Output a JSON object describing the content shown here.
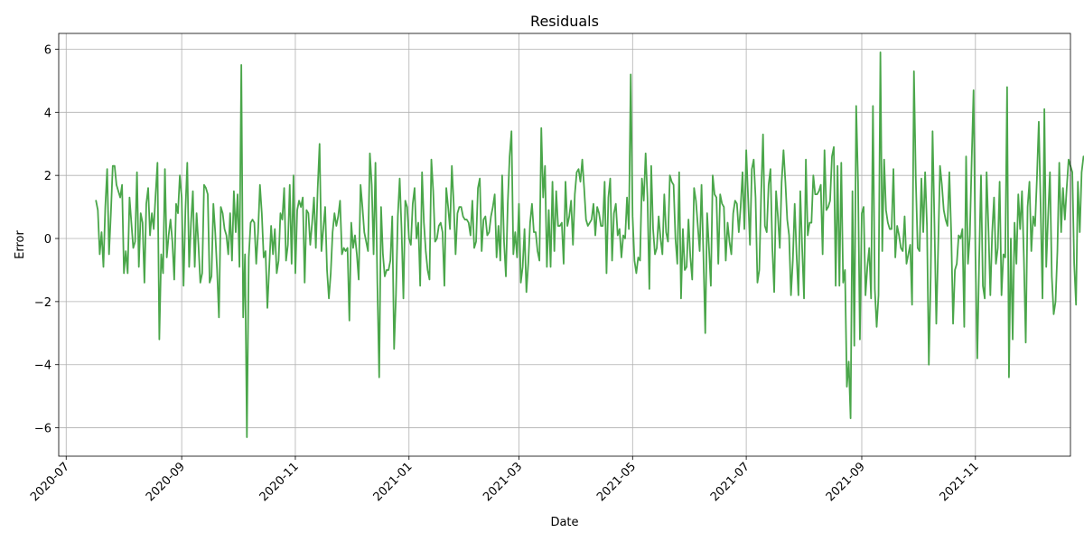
{
  "chart_data": {
    "type": "line",
    "title": "Residuals",
    "xlabel": "Date",
    "ylabel": "Error",
    "grid": true,
    "line_color": "#4aa64a",
    "x_range": [
      "2020-06-27",
      "2021-12-22"
    ],
    "ylim": [
      -6.9,
      6.5
    ],
    "y_ticks": [
      -6,
      -4,
      -2,
      0,
      2,
      4,
      6
    ],
    "x_ticks": [
      {
        "date": "2020-07-01",
        "label": "2020-07"
      },
      {
        "date": "2020-09-01",
        "label": "2020-09"
      },
      {
        "date": "2020-11-01",
        "label": "2020-11"
      },
      {
        "date": "2021-01-01",
        "label": "2021-01"
      },
      {
        "date": "2021-03-01",
        "label": "2021-03"
      },
      {
        "date": "2021-05-01",
        "label": "2021-05"
      },
      {
        "date": "2021-07-01",
        "label": "2021-07"
      },
      {
        "date": "2021-09-01",
        "label": "2021-09"
      },
      {
        "date": "2021-11-01",
        "label": "2021-11"
      }
    ],
    "series": [
      {
        "start_date": "2020-07-17",
        "values": [
          1.2,
          0.9,
          -0.5,
          0.2,
          -0.9,
          1.0,
          2.2,
          -0.5,
          0.8,
          2.3,
          2.3,
          1.7,
          1.5,
          1.3,
          1.7,
          -1.1,
          -0.4,
          -1.1,
          1.3,
          0.5,
          -0.3,
          -0.1,
          2.1,
          -0.9,
          0.8,
          0.5,
          -1.4,
          1.1,
          1.6,
          0.1,
          0.8,
          0.3,
          1.4,
          2.4,
          -3.2,
          -0.5,
          -1.1,
          2.2,
          -0.6,
          0.1,
          0.6,
          -0.1,
          -1.3,
          1.1,
          0.8,
          2.0,
          1.3,
          -1.5,
          0.9,
          2.4,
          -0.9,
          0.5,
          1.5,
          -0.9,
          0.8,
          -0.2,
          -1.4,
          -1.1,
          1.7,
          1.6,
          1.4,
          -1.4,
          -1.2,
          1.1,
          0.2,
          -1.0,
          -2.5,
          1.0,
          0.8,
          0.3,
          0.1,
          -0.5,
          0.8,
          -0.7,
          1.5,
          0.2,
          1.4,
          -0.9,
          5.5,
          -2.5,
          -0.5,
          -6.3,
          -0.6,
          0.5,
          0.6,
          0.5,
          -0.8,
          0.2,
          1.7,
          0.8,
          -0.6,
          -0.4,
          -2.2,
          -0.9,
          0.4,
          -0.5,
          0.3,
          -1.1,
          -0.7,
          0.8,
          0.6,
          1.6,
          -0.7,
          -0.2,
          1.7,
          -0.8,
          2.0,
          -1.1,
          0.9,
          1.2,
          1.0,
          1.3,
          -1.4,
          0.9,
          0.8,
          -0.2,
          0.5,
          1.3,
          -0.3,
          1.6,
          3.0,
          -0.4,
          0.3,
          1.0,
          -1.0,
          -1.9,
          -1.1,
          0.2,
          0.8,
          0.4,
          0.7,
          1.2,
          -0.5,
          -0.3,
          -0.4,
          -0.3,
          -2.6,
          0.5,
          -0.3,
          0.1,
          -0.5,
          -1.3,
          1.7,
          1.0,
          0.2,
          -0.1,
          -0.4,
          2.7,
          1.7,
          -0.5,
          2.4,
          -1.4,
          -4.4,
          1.0,
          -0.5,
          -1.2,
          -1.0,
          -1.0,
          -0.7,
          0.7,
          -3.5,
          -1.8,
          0.7,
          1.9,
          0.3,
          -1.9,
          1.2,
          1.0,
          0.0,
          -0.2,
          1.1,
          1.6,
          0.0,
          0.5,
          -1.5,
          2.1,
          0.5,
          -0.4,
          -1.0,
          -1.3,
          2.5,
          1.5,
          -0.1,
          -0.0,
          0.4,
          0.5,
          0.2,
          -1.5,
          1.6,
          1.0,
          0.3,
          2.3,
          1.1,
          -0.5,
          0.8,
          1.0,
          1.0,
          0.7,
          0.6,
          0.6,
          0.5,
          0.1,
          1.2,
          -0.3,
          -0.1,
          1.6,
          1.9,
          -0.4,
          0.6,
          0.7,
          0.1,
          0.2,
          0.7,
          1.0,
          1.4,
          -0.6,
          0.4,
          -0.7,
          2.0,
          -0.1,
          -1.2,
          1.1,
          2.6,
          3.4,
          -0.5,
          0.2,
          -0.6,
          1.1,
          -1.4,
          -0.9,
          0.3,
          -1.7,
          -0.8,
          0.5,
          1.1,
          0.2,
          0.2,
          -0.4,
          -0.7,
          3.5,
          1.3,
          2.3,
          -0.9,
          0.9,
          -0.9,
          1.8,
          -0.4,
          1.5,
          0.4,
          0.4,
          0.5,
          -0.8,
          1.8,
          0.4,
          0.7,
          1.2,
          -0.2,
          1.4,
          2.1,
          2.2,
          1.8,
          2.5,
          1.6,
          0.6,
          0.4,
          0.5,
          0.6,
          1.1,
          0.1,
          1.0,
          0.8,
          0.4,
          0.4,
          1.8,
          -1.1,
          1.3,
          1.9,
          -0.7,
          0.8,
          1.1,
          0.1,
          0.3,
          -0.6,
          0.1,
          0.0,
          1.3,
          0.3,
          5.2,
          0.7,
          -0.7,
          -1.1,
          -0.6,
          -0.7,
          1.9,
          1.2,
          2.7,
          1.3,
          -1.6,
          2.3,
          0.3,
          -0.5,
          -0.3,
          0.7,
          -0.0,
          -0.5,
          1.4,
          0.2,
          -0.1,
          2.0,
          1.8,
          1.7,
          0.0,
          -0.8,
          2.1,
          -1.9,
          0.3,
          -1.0,
          -0.9,
          0.6,
          -0.6,
          -1.3,
          1.6,
          1.2,
          0.4,
          -0.4,
          1.7,
          -0.5,
          -3.0,
          0.8,
          -0.3,
          -1.5,
          2.0,
          1.4,
          1.3,
          -0.8,
          1.4,
          1.1,
          1.0,
          -0.7,
          0.5,
          -0.1,
          -0.5,
          0.8,
          1.2,
          1.1,
          0.2,
          1.0,
          2.1,
          0.3,
          2.8,
          1.3,
          -0.2,
          2.2,
          2.5,
          1.3,
          -1.4,
          -1.0,
          1.4,
          3.3,
          0.4,
          0.2,
          1.7,
          2.2,
          -0.3,
          -1.7,
          1.5,
          0.7,
          -0.3,
          1.8,
          2.8,
          1.8,
          0.6,
          0.1,
          -1.8,
          -0.7,
          1.1,
          -0.5,
          -1.8,
          1.5,
          -0.3,
          -1.9,
          2.5,
          0.1,
          0.5,
          0.5,
          2.0,
          1.4,
          1.4,
          1.5,
          1.7,
          -0.5,
          2.8,
          0.9,
          1.0,
          1.2,
          2.6,
          2.9,
          -1.5,
          2.3,
          -1.5,
          2.4,
          -1.4,
          -1.0,
          -4.7,
          -3.9,
          -5.7,
          1.5,
          -3.4,
          4.2,
          1.8,
          -3.2,
          0.8,
          1.0,
          -1.8,
          -0.9,
          -0.3,
          -1.9,
          4.2,
          -1.6,
          -2.8,
          -1.8,
          5.9,
          -0.4,
          2.5,
          0.9,
          0.5,
          0.3,
          0.3,
          2.2,
          -0.6,
          0.4,
          0.1,
          -0.3,
          -0.4,
          0.7,
          -0.8,
          -0.5,
          -0.2,
          -2.1,
          5.3,
          1.9,
          -0.3,
          -0.4,
          1.9,
          0.2,
          2.1,
          0.4,
          -4.0,
          -1.2,
          3.4,
          0.5,
          -2.7,
          -0.3,
          2.3,
          1.7,
          0.9,
          0.6,
          0.4,
          2.1,
          0.2,
          -2.7,
          -1.0,
          -0.8,
          0.1,
          0.0,
          0.3,
          -2.8,
          2.6,
          -0.8,
          0.1,
          2.5,
          4.7,
          -0.5,
          -3.8,
          -0.7,
          2.0,
          -1.5,
          -1.9,
          2.1,
          0.3,
          -1.8,
          0.2,
          1.3,
          -0.8,
          -0.3,
          1.8,
          -1.8,
          -0.5,
          -0.6,
          4.8,
          -4.4,
          0.0,
          -3.2,
          0.5,
          -0.8,
          1.4,
          0.3,
          1.5,
          -0.6,
          -3.3,
          1.0,
          1.8,
          -0.4,
          0.7,
          0.4,
          1.9,
          3.7,
          1.0,
          -1.9,
          4.1,
          -0.9,
          0.7,
          2.1,
          -1.2,
          -2.4,
          -2.0,
          -0.4,
          2.4,
          0.2,
          1.6,
          0.6,
          1.6,
          2.5,
          2.3,
          2.1,
          -0.8,
          -2.1,
          1.8,
          0.2,
          2.1,
          2.6,
          2.5,
          0.9,
          0.2,
          -0.4,
          -2.1
        ]
      }
    ]
  }
}
